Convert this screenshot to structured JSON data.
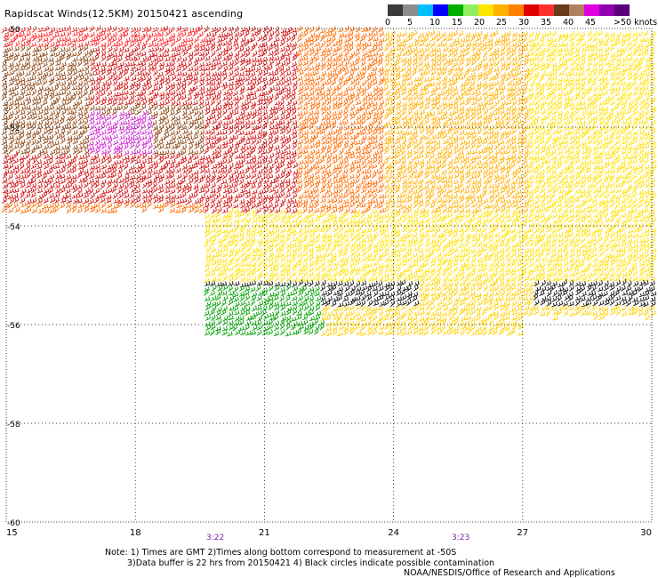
{
  "title": "Rapidscat Winds(12.5KM) 20150421 ascending",
  "colorbar": {
    "units_label": ">50 knots",
    "tick_labels": [
      "0",
      "5",
      "10",
      "15",
      "20",
      "25",
      "30",
      "35",
      "40",
      "45"
    ],
    "colors": [
      "#3a3a3a",
      "#8c8c8c",
      "#00bfff",
      "#0000ff",
      "#00b000",
      "#90ee60",
      "#ffe600",
      "#ffb000",
      "#ff8000",
      "#e00000",
      "#ff3030",
      "#6b3a1a",
      "#b08060",
      "#e000e0",
      "#9000b0",
      "#5a007a"
    ]
  },
  "axes": {
    "x_ticks": [
      "15",
      "18",
      "21",
      "24",
      "27",
      "30"
    ],
    "y_ticks": [
      "-50",
      "-52",
      "-54",
      "-56",
      "-58",
      "-60"
    ],
    "time_labels": [
      "3:22",
      "3:23"
    ]
  },
  "footer": {
    "note_line1": "Note: 1) Times are GMT 2)Times along bottom correspond to measurement at -50S",
    "note_line2": "3)Data buffer is 22 hrs from 20150421 4) Black circles indicate possible contamination",
    "credit": "NOAA/NESDIS/Office of Research and Applications"
  },
  "chart_data": {
    "type": "wind-barb map",
    "x_range": [
      15,
      30
    ],
    "y_range": [
      -60,
      -50
    ],
    "x_ticks": [
      15,
      18,
      21,
      24,
      27,
      30
    ],
    "y_ticks": [
      -50,
      -52,
      -54,
      -56,
      -58,
      -60
    ],
    "grid": true
  }
}
